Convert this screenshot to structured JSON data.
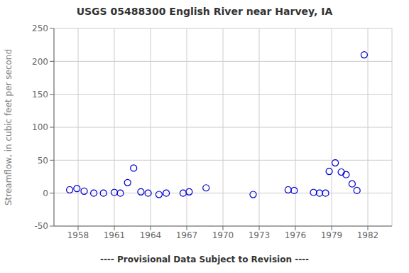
{
  "chart_data": {
    "type": "scatter",
    "title": "USGS 05488300 English River near Harvey, IA",
    "ylabel": "Streamflow, in cubic feet per second",
    "annotations": [
      "---- Provisional Data Subject to Revision ----"
    ],
    "x": [
      1957.3,
      1957.9,
      1958.5,
      1959.3,
      1960.1,
      1961.0,
      1961.5,
      1962.1,
      1962.6,
      1963.2,
      1963.8,
      1964.7,
      1965.3,
      1966.7,
      1967.2,
      1968.6,
      1972.5,
      1975.4,
      1975.9,
      1977.5,
      1978.0,
      1978.5,
      1978.8,
      1979.3,
      1979.8,
      1980.2,
      1980.7,
      1981.1,
      1981.7
    ],
    "values": [
      5,
      7,
      3,
      0,
      0,
      1,
      0,
      16,
      38,
      2,
      0,
      -2,
      0,
      0,
      2,
      8,
      -2,
      5,
      4,
      1,
      0,
      0,
      33,
      46,
      32,
      28,
      14,
      4,
      210
    ],
    "color": "#0000cc",
    "xlim": [
      1956.0,
      1984.0
    ],
    "ylim": [
      -50,
      250
    ],
    "xticks": [
      1958,
      1961,
      1964,
      1967,
      1970,
      1973,
      1976,
      1979,
      1982
    ],
    "yticks": [
      -50,
      0,
      50,
      100,
      150,
      200,
      250
    ],
    "grid": true
  }
}
